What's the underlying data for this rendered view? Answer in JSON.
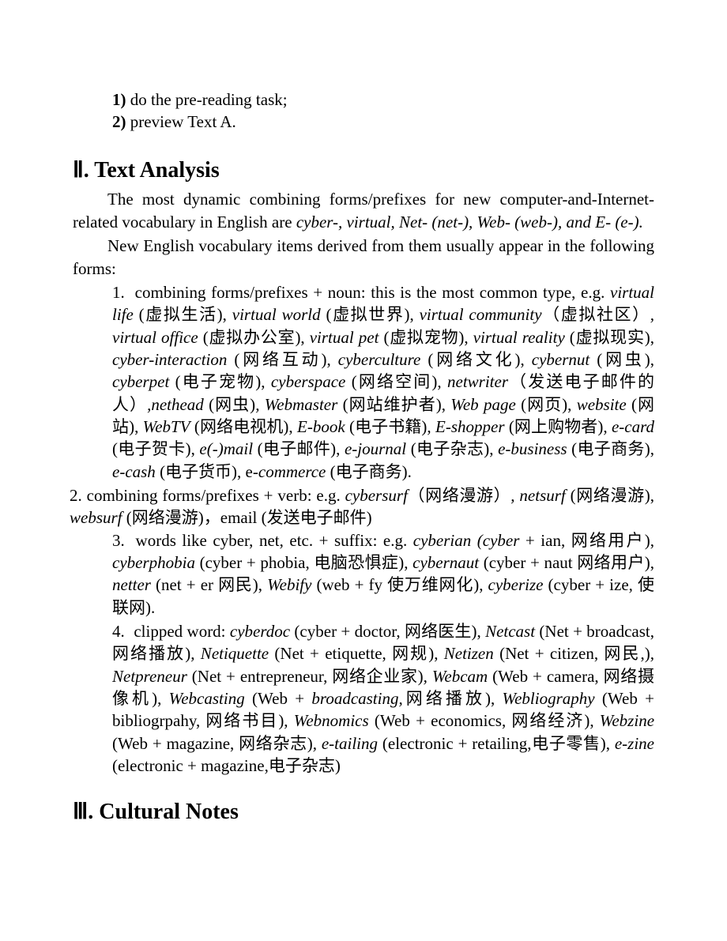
{
  "pretasks": {
    "items": [
      {
        "num": "1)",
        "text": " do the pre-reading task;"
      },
      {
        "num": "2)",
        "text": " preview Text A."
      }
    ]
  },
  "section2": {
    "heading": "Ⅱ. Text Analysis",
    "para1_a": "The most dynamic combining forms/prefixes for new computer-and-Internet-related vocabulary in English are ",
    "para1_b": "cyber-, virtual, Net- (net-), Web- (web-), and E- (e-).",
    "para2": "New English vocabulary items derived from them usually appear in the following forms:",
    "item1": {
      "num": "1.",
      "lead": "combining forms/prefixes + noun: this is the most common type, e.g. ",
      "body_html": "<span class=\"ital\">virtual life</span> (虚拟生活), <span class=\"ital\">virtual world</span> (虚拟世界), <span class=\"ital\">virtual community</span>（虚拟社区）<span class=\"ital\">, virtual office</span> (虚拟办公室), <span class=\"ital\">virtual pet</span> (虚拟宠物), <span class=\"ital\">virtual reality</span> (虚拟现实), <span class=\"ital\">cyber-interaction</span> (网络互动), <span class=\"ital\">cyberculture</span> (网络文化), <span class=\"ital\">cybernut</span> (网虫), <span class=\"ital\">cyberpet</span> (电子宠物), <span class=\"ital\">cyberspace</span> (网络空间),  <span class=\"ital\">netwriter</span>（发送电子邮件的人）<span class=\"ital\">,nethead</span> (网虫)<span class=\"ital\">, Webmaster</span> (网站维护者), <span class=\"ital\">Web page</span> (网页), <span class=\"ital\">website</span> (网站), <span class=\"ital\">WebTV</span> (网络电视机), <span class=\"ital\">E-book</span> (电子书籍), <span class=\"ital\">E-shopper</span> (网上购物者), <span class=\"ital\">e-card</span> (电子贺卡), <span class=\"ital\">e(-)mail</span> (电子邮件), <span class=\"ital\">e-journal</span> (电子杂志), <span class=\"ital\">e-business</span> (电子商务), <span class=\"ital\">e-cash</span> (电子货币), e-<span class=\"ital\">commerce</span> (电子商务)."
    },
    "item2": {
      "num": "2.",
      "lead_html": "combining forms/prefixes + verb: e.g. <span class=\"ital\">cybersurf</span>（网络漫游）<span class=\"ital\">, netsurf</span> (网络漫游), <span class=\"ital\">websurf</span> (网络漫游)，email (发送电子邮件)"
    },
    "item3": {
      "num": "3.",
      "lead_html": "words like cyber, net, etc. + suffix: e.g. <span class=\"ital\">cyberian (cyber</span> + ian, 网络用户), <span class=\"ital\">cyberphobia</span> (cyber + phobia, 电脑恐惧症), <span class=\"ital\">cybernaut</span> (cyber + naut 网络用户), <span class=\"ital\">netter</span> (net + er 网民), <span class=\"ital\">Webify</span> (web + fy 使万维网化), <span class=\"ital\">cyberize</span> (cyber + ize, 使联网)."
    },
    "item4": {
      "num": "4.",
      "lead_html": "clipped word: <span class=\"ital\">cyberdoc</span> (cyber + doctor, 网络医生), <span class=\"ital\">Netcast</span> (Net + broadcast,网络播放)<span class=\"ital\">, Netiquette</span> (Net + etiquette, 网规), <span class=\"ital\">Netizen</span> (Net + citizen, 网民,)<span class=\"ital\">, Netpreneur</span> (Net + entrepreneur, 网络企业家)<span class=\"ital\">, Webcam</span> (Web + camera, 网络摄像机), <span class=\"ital\">Webcasting</span> (Web + <span class=\"ital\">broadcasting,</span>网络播放), <span class=\"ital\">Webliography</span> (Web + bibliogrpahy, 网络书目), <span class=\"ital\">Webnomics</span> (Web + economics, 网络经济), <span class=\"ital\">Webzine</span> (Web + magazine, 网络杂志)<span class=\"ital\">, e-tailing</span> (electronic + retailing,电子零售), <span class=\"ital\">e-zine</span> (electronic + magazine,电子杂志)"
    }
  },
  "section3": {
    "heading": "Ⅲ. Cultural Notes"
  }
}
